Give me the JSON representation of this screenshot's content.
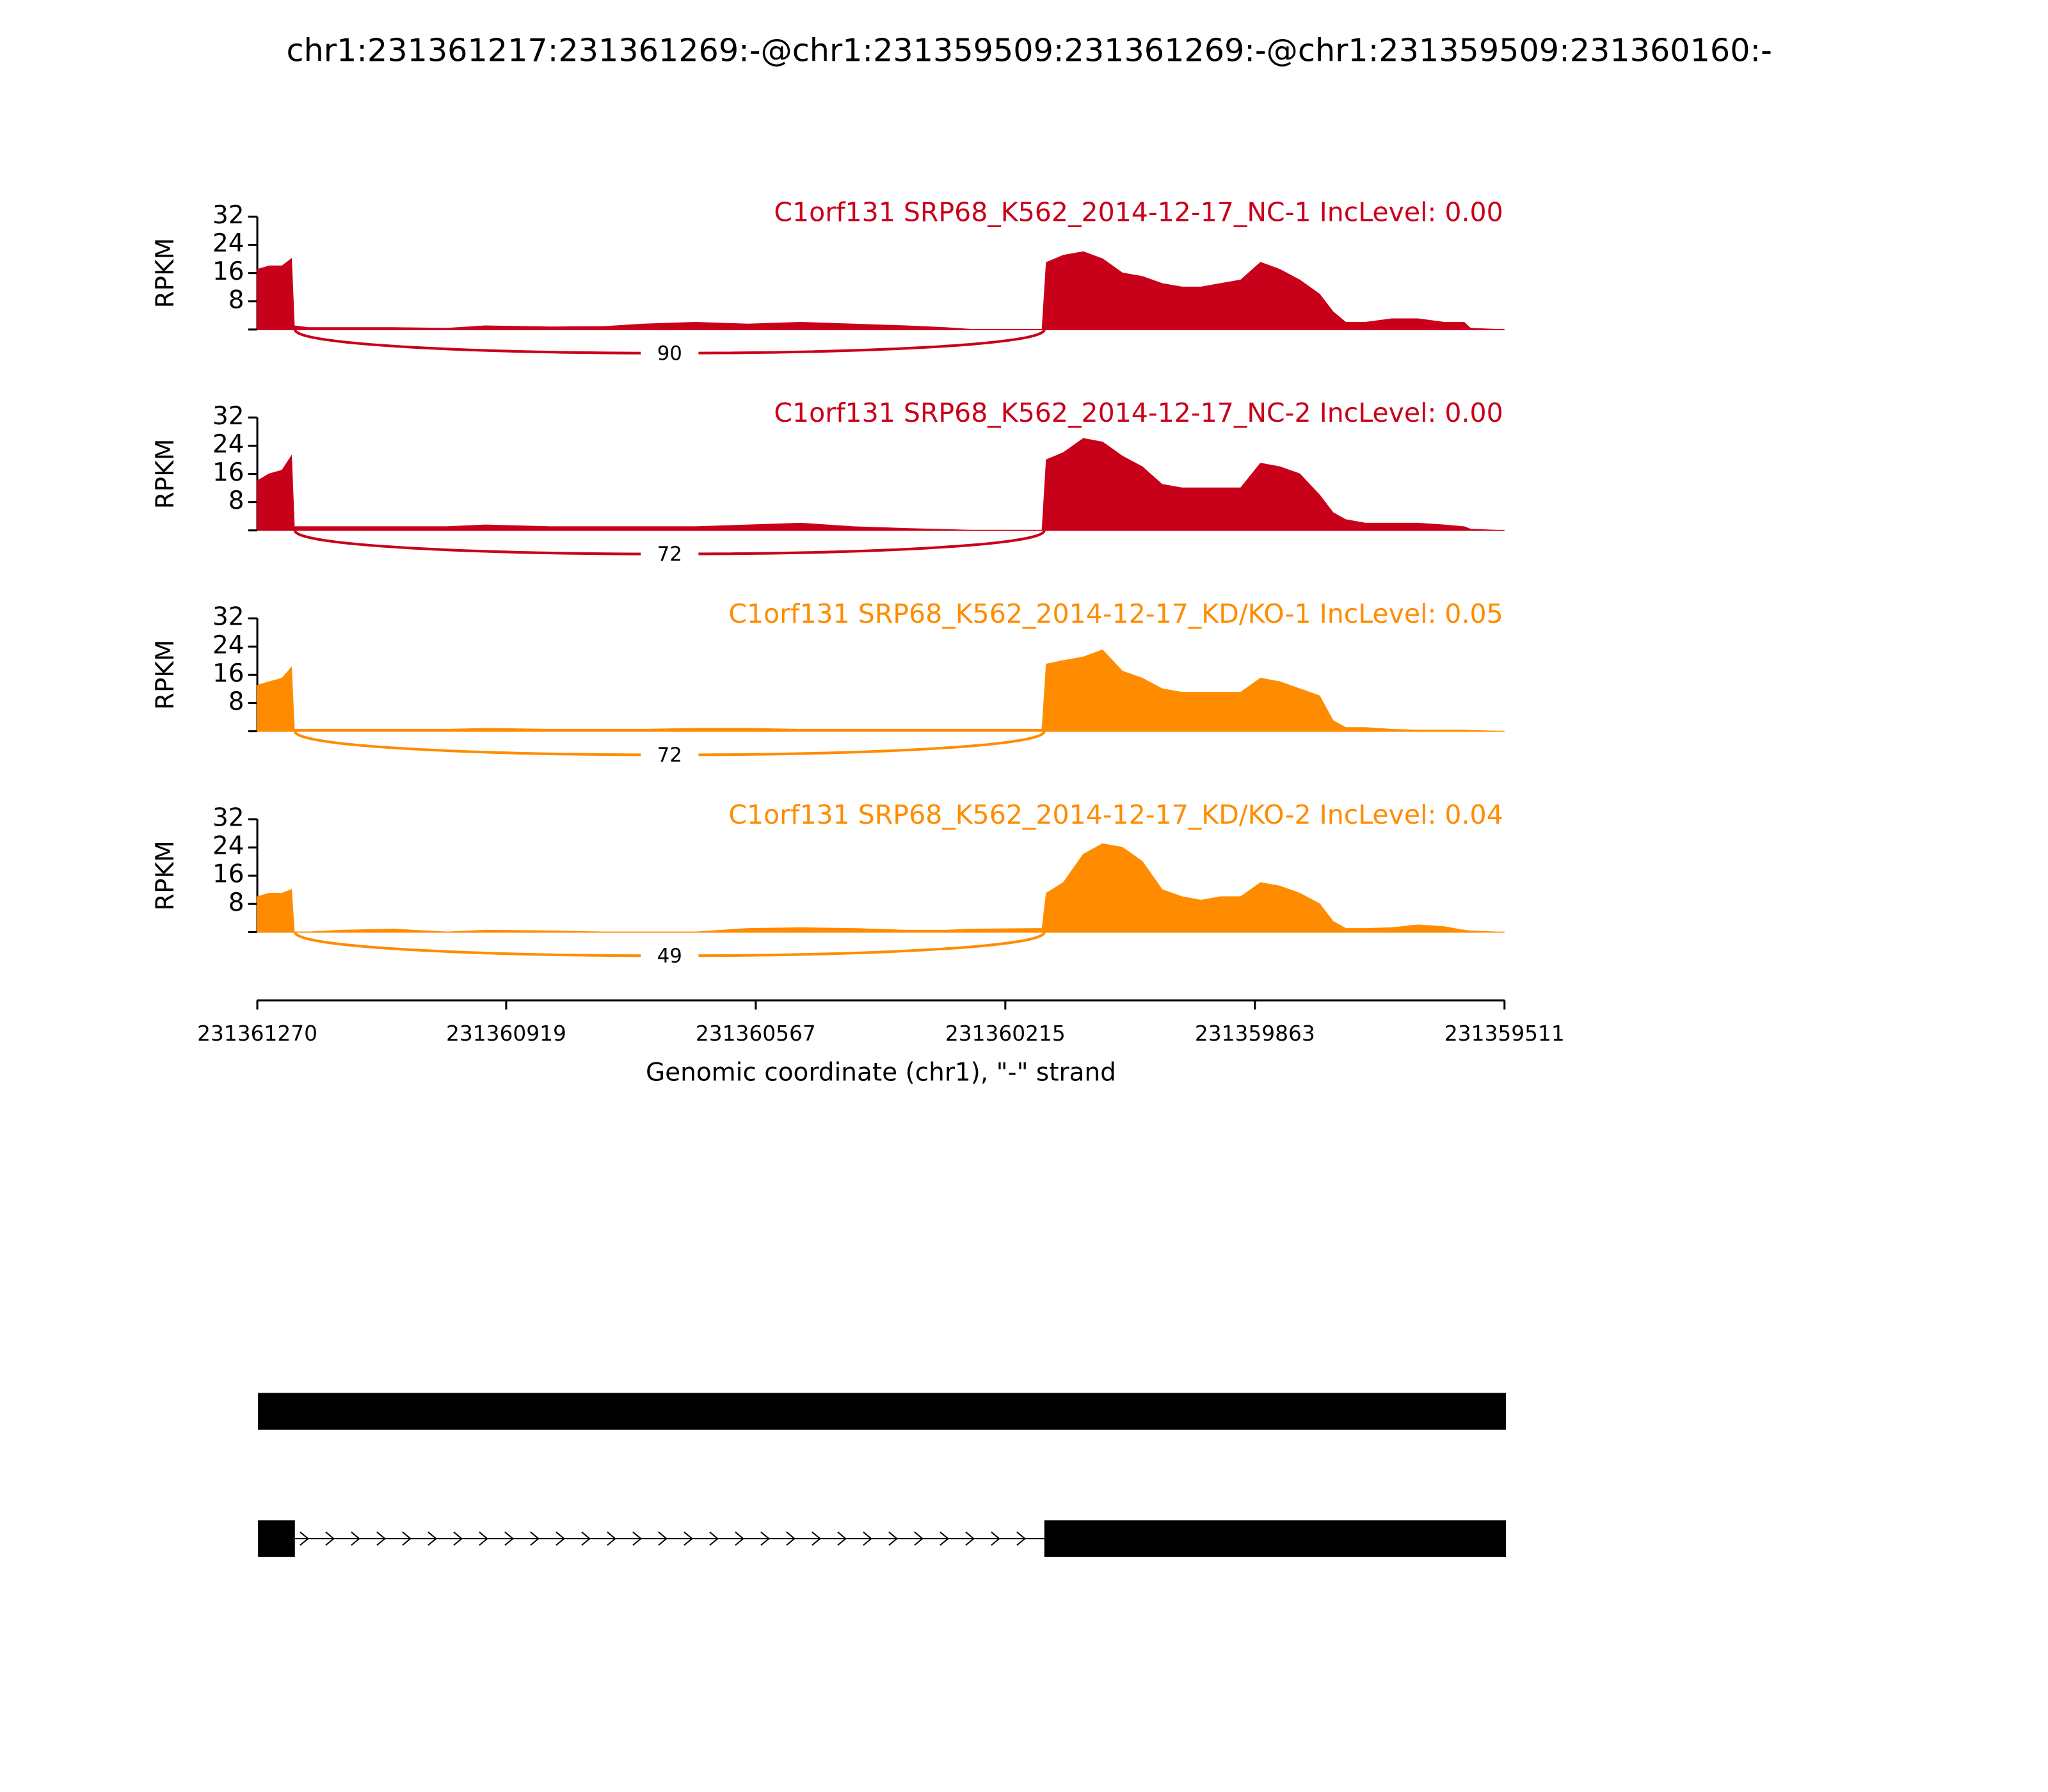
{
  "chart_data": {
    "type": "sashimi",
    "title": "chr1:231361217:231361269:-@chr1:231359509:231361269:-@chr1:231359509:231360160:-",
    "xlabel": "Genomic coordinate (chr1), \"-\" strand",
    "ylabel": "RPKM",
    "xlim": [
      231361270,
      231359511
    ],
    "xticks": [
      231361270,
      231360919,
      231360567,
      231360215,
      231359863,
      231359511
    ],
    "ylim": [
      0,
      32
    ],
    "yticks": [
      8,
      16,
      24,
      32
    ],
    "x": [
      231361270,
      231361253,
      231361235,
      231361222,
      231361218,
      231361198,
      231361152,
      231361077,
      231361003,
      231360948,
      231360855,
      231360781,
      231360726,
      231360652,
      231360578,
      231360503,
      231360429,
      231360355,
      231360300,
      231360263,
      231360170,
      231360163,
      231360157,
      231360133,
      231360105,
      231360078,
      231360050,
      231360022,
      231359994,
      231359966,
      231359939,
      231359911,
      231359883,
      231359855,
      231359828,
      231359800,
      231359772,
      231359753,
      231359735,
      231359707,
      231359670,
      231359633,
      231359596,
      231359568,
      231359559,
      231359522
    ],
    "series": [
      {
        "name": "C1orf131 SRP68_K562_2014-12-17_NC-1 IncLevel: 0.00",
        "color": "#c9001a",
        "values": [
          17,
          18,
          18,
          20,
          1,
          0.5,
          0.5,
          0.5,
          0.3,
          1,
          0.7,
          0.8,
          1.5,
          2,
          1.5,
          2,
          1.5,
          1,
          0.5,
          0,
          0,
          0,
          19,
          21,
          22,
          20,
          16,
          15,
          13,
          12,
          12,
          13,
          14,
          19,
          17,
          14,
          10,
          5,
          2,
          2,
          3,
          3,
          2,
          2,
          0.3,
          0
        ],
        "junctions": [
          {
            "from": 231361217,
            "to": 231360160,
            "count": 90
          }
        ]
      },
      {
        "name": "C1orf131 SRP68_K562_2014-12-17_NC-2 IncLevel: 0.00",
        "color": "#c9001a",
        "values": [
          14,
          16,
          17,
          21,
          1,
          1,
          1,
          1,
          1,
          1.5,
          1,
          1,
          1,
          1,
          1.5,
          2,
          1,
          0.5,
          0.2,
          0,
          0,
          0,
          20,
          22,
          26,
          25,
          21,
          18,
          13,
          12,
          12,
          12,
          12,
          19,
          18,
          16,
          10,
          5,
          3,
          2,
          2,
          2,
          1.5,
          1,
          0.3,
          0
        ],
        "junctions": [
          {
            "from": 231361217,
            "to": 231360160,
            "count": 72
          }
        ]
      },
      {
        "name": "C1orf131 SRP68_K562_2014-12-17_KD/KO-1 IncLevel: 0.05",
        "color": "#ff8c00",
        "values": [
          13,
          14,
          15,
          18,
          0.5,
          0.5,
          0.5,
          0.5,
          0.5,
          0.8,
          0.5,
          0.5,
          0.5,
          0.8,
          0.8,
          0.5,
          0.5,
          0.5,
          0.5,
          0.5,
          0.5,
          0.5,
          19,
          20,
          21,
          23,
          17,
          15,
          12,
          11,
          11,
          11,
          11,
          15,
          14,
          12,
          10,
          3,
          1,
          1,
          0.5,
          0.3,
          0.3,
          0.3,
          0.2,
          0
        ],
        "junctions": [
          {
            "from": 231361217,
            "to": 231360160,
            "count": 72
          }
        ]
      },
      {
        "name": "C1orf131 SRP68_K562_2014-12-17_KD/KO-2 IncLevel: 0.04",
        "color": "#ff8c00",
        "values": [
          10,
          11,
          11,
          12,
          0,
          0,
          0.5,
          0.8,
          0,
          0.5,
          0.3,
          0,
          0,
          0,
          1,
          1.2,
          1,
          0.5,
          0.5,
          0.8,
          1,
          1,
          11,
          14,
          22,
          25,
          24,
          20,
          12,
          10,
          9,
          10,
          10,
          14,
          13,
          11,
          8,
          3,
          1,
          1,
          1.2,
          2,
          1.5,
          0.5,
          0.3,
          0
        ],
        "junctions": [
          {
            "from": 231361217,
            "to": 231360160,
            "count": 49
          }
        ]
      }
    ],
    "transcripts": [
      {
        "exons": [
          [
            231361269,
            231359509
          ]
        ]
      },
      {
        "exons": [
          [
            231361269,
            231361217
          ],
          [
            231360160,
            231359509
          ]
        ]
      }
    ]
  }
}
